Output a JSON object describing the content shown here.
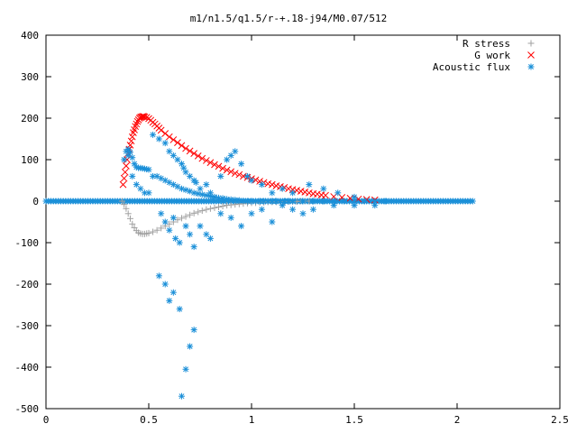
{
  "chart_data": {
    "type": "scatter",
    "title": "m1/n1.5/q1.5/r-+.18-j94/M0.07/512",
    "xlabel": "",
    "ylabel": "",
    "xlim": [
      0,
      2.5
    ],
    "ylim": [
      -500,
      400
    ],
    "xticks": [
      0,
      0.5,
      1,
      1.5,
      2,
      2.5
    ],
    "xtick_labels": [
      "0",
      "0.5",
      "1",
      "1.5",
      "2",
      "2.5"
    ],
    "yticks": [
      -500,
      -400,
      -300,
      -200,
      -100,
      0,
      100,
      200,
      300,
      400
    ],
    "ytick_labels": [
      "-500",
      "-400",
      "-300",
      "-200",
      "-100",
      "0",
      "100",
      "200",
      "300",
      "400"
    ],
    "grid": false,
    "legend_position": "top-right",
    "series": [
      {
        "name": "R stress",
        "marker": "plus",
        "color": "#a0a0a0",
        "x": [
          0.37,
          0.38,
          0.39,
          0.4,
          0.41,
          0.42,
          0.43,
          0.44,
          0.45,
          0.46,
          0.47,
          0.48,
          0.49,
          0.5,
          0.52,
          0.54,
          0.56,
          0.58,
          0.6,
          0.62,
          0.64,
          0.66,
          0.68,
          0.7,
          0.72,
          0.74,
          0.76,
          0.78,
          0.8,
          0.82,
          0.84,
          0.86,
          0.88,
          0.9,
          0.92,
          0.94,
          0.96,
          0.98,
          1.0,
          1.02,
          1.04,
          1.06,
          1.08,
          1.1,
          1.12,
          1.14,
          1.16,
          1.18,
          1.2,
          1.22,
          1.24,
          1.26,
          1.28,
          1.3,
          1.35,
          1.4,
          1.45,
          1.5,
          1.55,
          1.6
        ],
        "y": [
          0,
          -8,
          -18,
          -30,
          -42,
          -55,
          -64,
          -71,
          -76,
          -78,
          -79,
          -79,
          -78,
          -77,
          -74,
          -70,
          -65,
          -60,
          -55,
          -50,
          -45,
          -41,
          -37,
          -33,
          -29,
          -26,
          -23,
          -20,
          -18,
          -16,
          -14,
          -12,
          -10,
          -9,
          -8,
          -7,
          -6,
          -5,
          -4,
          -4,
          -3,
          -3,
          -2,
          -2,
          -2,
          -1,
          -1,
          -1,
          -1,
          -1,
          0,
          0,
          0,
          0,
          0,
          0,
          0,
          0,
          0,
          0
        ]
      },
      {
        "name": "G work",
        "marker": "cross",
        "color": "#ff0000",
        "x": [
          0.375,
          0.38,
          0.385,
          0.39,
          0.395,
          0.4,
          0.405,
          0.41,
          0.415,
          0.42,
          0.425,
          0.43,
          0.435,
          0.44,
          0.445,
          0.45,
          0.455,
          0.46,
          0.465,
          0.47,
          0.475,
          0.48,
          0.49,
          0.5,
          0.51,
          0.52,
          0.53,
          0.54,
          0.55,
          0.56,
          0.58,
          0.6,
          0.62,
          0.64,
          0.66,
          0.68,
          0.7,
          0.72,
          0.74,
          0.76,
          0.78,
          0.8,
          0.82,
          0.84,
          0.86,
          0.88,
          0.9,
          0.92,
          0.94,
          0.96,
          0.98,
          1.0,
          1.02,
          1.04,
          1.06,
          1.08,
          1.1,
          1.12,
          1.14,
          1.16,
          1.18,
          1.2,
          1.22,
          1.24,
          1.26,
          1.28,
          1.3,
          1.32,
          1.34,
          1.36,
          1.4,
          1.44,
          1.48,
          1.52,
          1.56,
          1.6
        ],
        "y": [
          40,
          55,
          70,
          85,
          100,
          115,
          125,
          135,
          145,
          155,
          165,
          172,
          180,
          186,
          192,
          196,
          200,
          202,
          203,
          204,
          204,
          203,
          202,
          199,
          195,
          190,
          186,
          181,
          176,
          171,
          163,
          155,
          148,
          141,
          134,
          127,
          121,
          115,
          109,
          103,
          98,
          93,
          88,
          84,
          79,
          75,
          71,
          67,
          64,
          60,
          57,
          54,
          51,
          48,
          45,
          42,
          40,
          37,
          35,
          33,
          30,
          28,
          26,
          24,
          22,
          20,
          18,
          17,
          15,
          14,
          11,
          9,
          7,
          5,
          4,
          3
        ]
      },
      {
        "name": "Acoustic flux",
        "marker": "star",
        "color": "#1a8fd8",
        "x": [
          0.39,
          0.4,
          0.41,
          0.42,
          0.43,
          0.44,
          0.45,
          0.46,
          0.47,
          0.48,
          0.49,
          0.5,
          0.52,
          0.54,
          0.56,
          0.58,
          0.6,
          0.62,
          0.64,
          0.66,
          0.68,
          0.7,
          0.72,
          0.74,
          0.76,
          0.78,
          0.8,
          0.82,
          0.84,
          0.86,
          0.88,
          0.9,
          0.92,
          0.94,
          0.96,
          0.98,
          1.0,
          1.02,
          1.04,
          1.06,
          1.08,
          1.1,
          1.12,
          1.14,
          1.16,
          1.18,
          1.2,
          1.25,
          1.3,
          1.35,
          1.4,
          1.45,
          1.5,
          1.55,
          1.6,
          1.65,
          0.38,
          0.4,
          0.42,
          0.44,
          0.46,
          0.48,
          0.5,
          0.52,
          0.55,
          0.58,
          0.6,
          0.62,
          0.64,
          0.66,
          0.67,
          0.68,
          0.7,
          0.72,
          0.73,
          0.75,
          0.78,
          0.8,
          0.82,
          0.85,
          0.88,
          0.9,
          0.92,
          0.95,
          0.98,
          1.0,
          1.05,
          1.1,
          1.15,
          1.2,
          1.28,
          1.35,
          1.42,
          1.5,
          0.56,
          0.58,
          0.6,
          0.62,
          0.63,
          0.65,
          0.68,
          0.7,
          0.72,
          0.75,
          0.78,
          0.8,
          0.85,
          0.9,
          0.95,
          1.0,
          1.05,
          1.1,
          1.15,
          1.2,
          1.25,
          1.3,
          1.4,
          1.5,
          1.6,
          0.66,
          0.68,
          0.7,
          0.72,
          0.6,
          0.62,
          0.55,
          0.58,
          0.65
        ],
        "y": [
          120,
          125,
          118,
          105,
          90,
          82,
          80,
          80,
          79,
          78,
          77,
          76,
          60,
          60,
          55,
          50,
          45,
          40,
          35,
          30,
          27,
          24,
          20,
          18,
          16,
          14,
          12,
          10,
          8,
          7,
          5,
          4,
          3,
          2,
          1,
          0,
          0,
          0,
          0,
          0,
          0,
          0,
          0,
          0,
          0,
          0,
          0,
          0,
          0,
          0,
          0,
          0,
          0,
          0,
          0,
          0,
          100,
          110,
          60,
          40,
          30,
          20,
          20,
          160,
          150,
          140,
          120,
          110,
          100,
          90,
          80,
          70,
          60,
          50,
          45,
          30,
          40,
          20,
          10,
          60,
          100,
          110,
          120,
          90,
          60,
          50,
          40,
          20,
          30,
          20,
          40,
          30,
          20,
          10,
          -30,
          -50,
          -70,
          -40,
          -90,
          -100,
          -60,
          -80,
          -110,
          -60,
          -80,
          -90,
          -30,
          -40,
          -60,
          -30,
          -20,
          -50,
          -10,
          -20,
          -30,
          -20,
          -10,
          -10,
          -10,
          -470,
          -405,
          -350,
          -310,
          -240,
          -220,
          -180,
          -200,
          -260
        ]
      }
    ]
  }
}
